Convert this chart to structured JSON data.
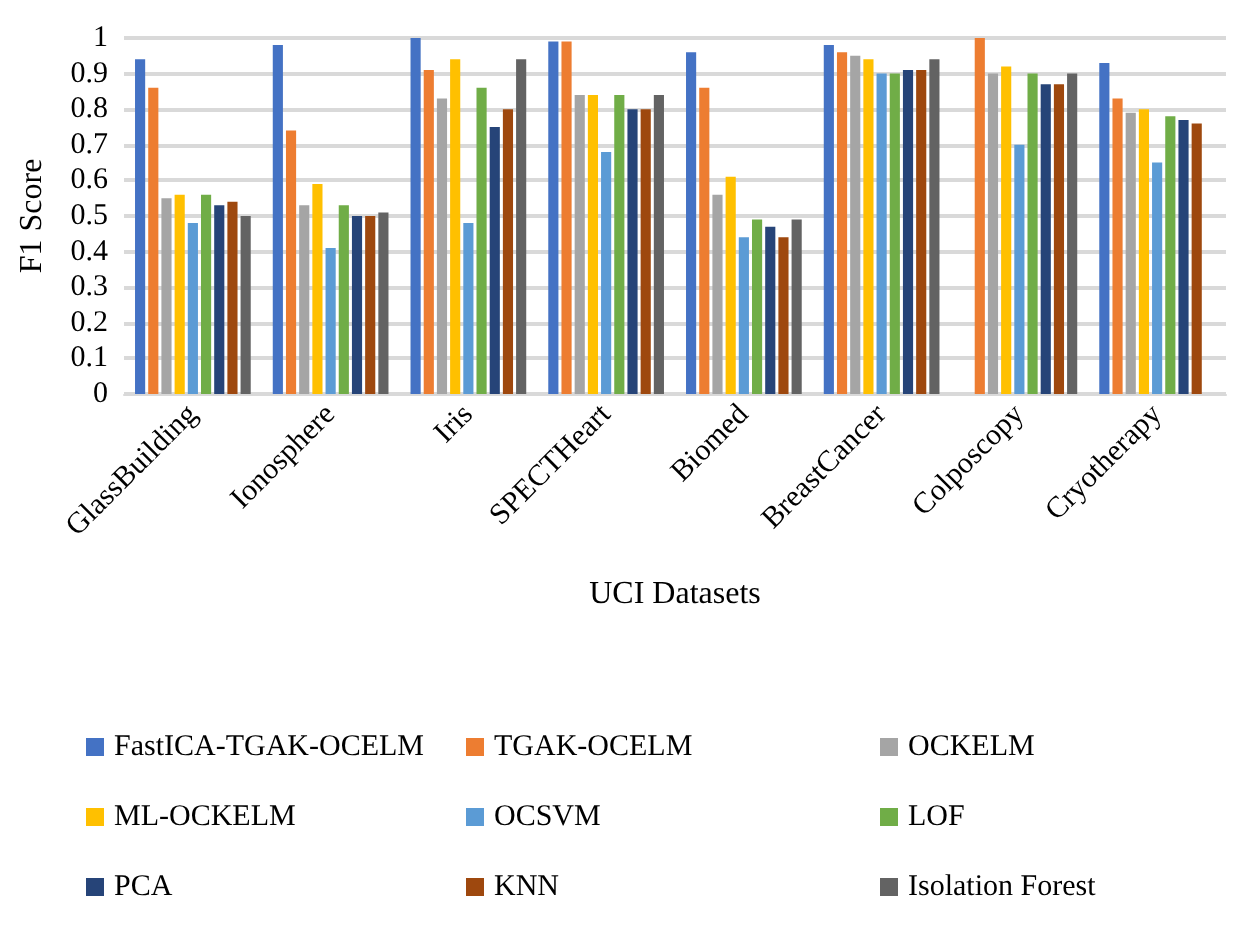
{
  "chart_data": {
    "type": "bar",
    "xlabel": "UCI Datasets",
    "ylabel": "F1 Score",
    "categories": [
      "GlassBuilding",
      "Ionosphere",
      "Iris",
      "SPECTHeart",
      "Biomed",
      "BreastCancer",
      "Colposcopy",
      "Cryotherapy"
    ],
    "series": [
      {
        "name": "FastICA-TGAK-OCELM",
        "color": "#4472c4",
        "values": [
          0.94,
          0.98,
          1.0,
          0.99,
          0.96,
          0.98,
          null,
          0.93
        ]
      },
      {
        "name": "TGAK-OCELM",
        "color": "#ed7d31",
        "values": [
          0.86,
          0.74,
          0.91,
          0.99,
          0.86,
          0.96,
          1.0,
          0.83
        ]
      },
      {
        "name": "OCKELM",
        "color": "#a5a5a5",
        "values": [
          0.55,
          0.53,
          0.83,
          0.84,
          0.56,
          0.95,
          0.9,
          0.79
        ]
      },
      {
        "name": "ML-OCKELM",
        "color": "#ffc000",
        "values": [
          0.56,
          0.59,
          0.94,
          0.84,
          0.61,
          0.94,
          0.92,
          0.8
        ]
      },
      {
        "name": "OCSVM",
        "color": "#5b9bd5",
        "values": [
          0.48,
          0.41,
          0.48,
          0.68,
          0.44,
          0.9,
          0.7,
          0.65
        ]
      },
      {
        "name": "LOF",
        "color": "#70ad47",
        "values": [
          0.56,
          0.53,
          0.86,
          0.84,
          0.49,
          0.9,
          0.9,
          0.78
        ]
      },
      {
        "name": "PCA",
        "color": "#264478",
        "values": [
          0.53,
          0.5,
          0.75,
          0.8,
          0.47,
          0.91,
          0.87,
          0.77
        ]
      },
      {
        "name": "KNN",
        "color": "#9e480e",
        "values": [
          0.54,
          0.5,
          0.8,
          0.8,
          0.44,
          0.91,
          0.87,
          0.76
        ]
      },
      {
        "name": "Isolation Forest",
        "color": "#636363",
        "values": [
          0.5,
          0.51,
          0.94,
          0.84,
          0.49,
          0.94,
          0.9,
          null
        ]
      }
    ],
    "ylim": [
      0,
      1
    ],
    "yticks": [
      0,
      0.1,
      0.2,
      0.3,
      0.4,
      0.5,
      0.6,
      0.7,
      0.8,
      0.9,
      1
    ],
    "grid": "y",
    "legend": "bottom"
  }
}
